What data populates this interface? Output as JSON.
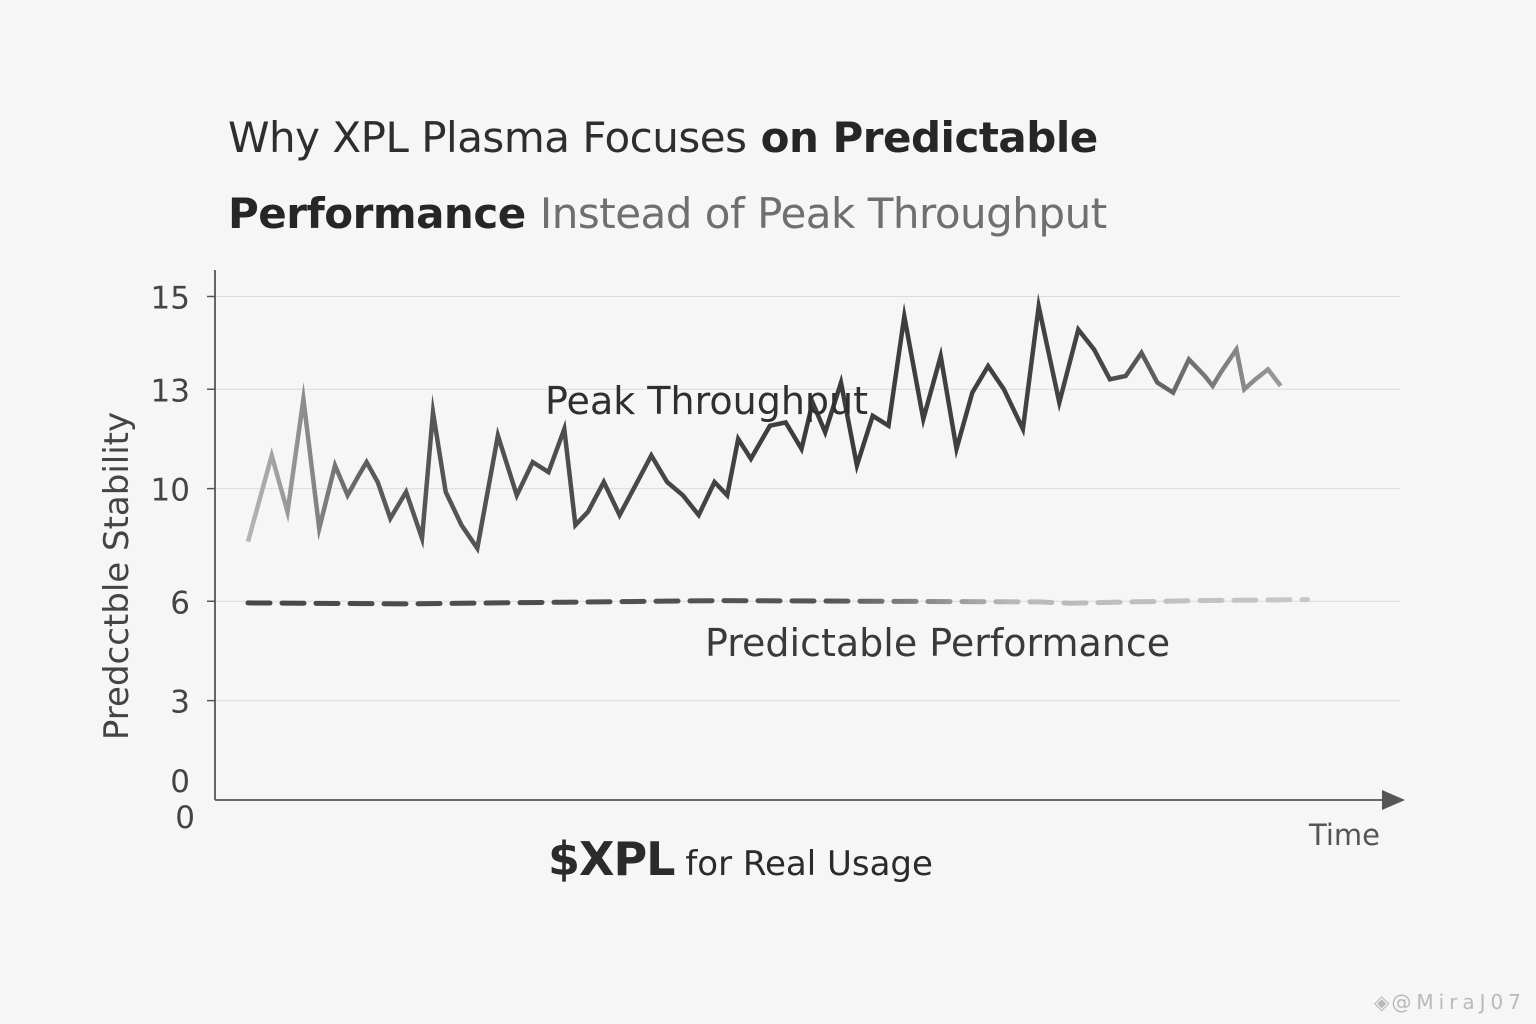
{
  "title": {
    "line1_light": "Why XPL Plasma Focuses",
    "line1_bold": "on Predictable",
    "line2_bold": "Performance",
    "line2_light": "Instead of Peak Throughput"
  },
  "footer": {
    "brand": "$XPL",
    "text": "for Real Usage"
  },
  "watermark": "@MiraJ07",
  "colors": {
    "background": "#f6f6f7",
    "line_dark": "#3c3c3c",
    "line_light": "#b5b5b5",
    "grid": "#dcdcdc",
    "axis": "#555555"
  },
  "chart_data": {
    "type": "line",
    "ylabel": "Predcctble Stability",
    "xlabel": "Time",
    "ylim": [
      0,
      16
    ],
    "xlim": [
      0,
      70
    ],
    "yticks": [
      "0",
      "3",
      "6",
      "10",
      "13",
      "15"
    ],
    "ytick_values": [
      0,
      3,
      6,
      9.4,
      12.4,
      15.2
    ],
    "extra_origin_label": "0",
    "grid": true,
    "arrow_x_axis": true,
    "series": [
      {
        "name": "Peak Throughput",
        "style": "solid",
        "x": [
          0,
          1.5,
          2.5,
          3.5,
          4.5,
          5.5,
          6.3,
          7.0,
          7.5,
          8.2,
          9.0,
          10.0,
          11.0,
          11.7,
          12.5,
          13.5,
          14.5,
          15.8,
          17.0,
          18.0,
          19.0,
          20.0,
          20.7,
          21.5,
          22.5,
          23.5,
          24.5,
          25.5,
          26.5,
          27.5,
          28.5,
          29.5,
          30.3,
          31.0,
          31.8,
          33.0,
          34.0,
          35.0,
          35.7,
          36.5,
          37.5,
          38.5,
          39.5,
          40.5,
          41.5,
          42.7,
          43.8,
          44.8,
          45.8,
          46.8,
          47.8,
          49.0,
          50.0,
          51.3,
          52.5,
          53.5,
          54.5,
          55.5,
          56.5,
          57.5,
          58.5,
          59.5,
          60.5,
          61.0,
          61.5,
          62.5,
          63.0,
          63.7,
          64.5,
          65.3
        ],
        "y": [
          7.8,
          10.4,
          8.7,
          12.1,
          8.2,
          10.1,
          9.2,
          9.8,
          10.2,
          9.6,
          8.5,
          9.3,
          7.9,
          11.7,
          9.3,
          8.3,
          7.6,
          11.0,
          9.2,
          10.2,
          9.9,
          11.2,
          8.3,
          8.7,
          9.6,
          8.6,
          9.5,
          10.4,
          9.6,
          9.2,
          8.6,
          9.6,
          9.2,
          10.9,
          10.3,
          11.3,
          11.4,
          10.6,
          12.0,
          11.1,
          12.6,
          10.1,
          11.6,
          11.3,
          14.6,
          11.5,
          13.4,
          10.6,
          12.3,
          13.1,
          12.4,
          11.2,
          14.9,
          12.0,
          14.2,
          13.6,
          12.7,
          12.8,
          13.5,
          12.6,
          12.3,
          13.3,
          12.8,
          12.5,
          12.9,
          13.6,
          12.4,
          12.7,
          13.0,
          12.5
        ],
        "label": "Peak Throughput"
      },
      {
        "name": "Predictable Performance",
        "style": "dashed",
        "x": [
          0,
          10,
          20,
          30,
          40,
          50,
          52,
          60,
          67
        ],
        "y": [
          5.95,
          5.92,
          5.97,
          6.02,
          6.0,
          5.98,
          5.94,
          6.02,
          6.05
        ],
        "label": "Predictable Performance"
      }
    ]
  }
}
